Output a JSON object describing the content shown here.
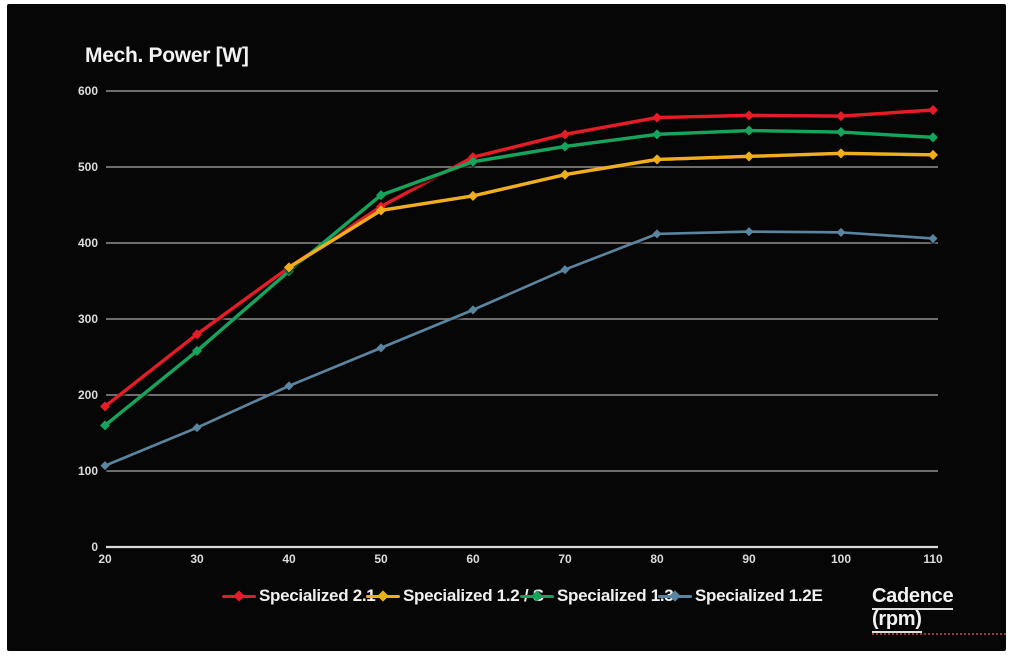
{
  "chart_data": {
    "type": "line",
    "title": "Mech. Power [W]",
    "xlabel": "Cadence (rpm)",
    "x": [
      20,
      30,
      40,
      50,
      60,
      70,
      80,
      90,
      100,
      110
    ],
    "y_ticks": [
      0,
      100,
      200,
      300,
      400,
      500,
      600
    ],
    "ylim": [
      0,
      600
    ],
    "xlim": [
      20,
      110
    ],
    "grid": true,
    "legend_position": "bottom",
    "background_color": "#060606",
    "gridline_color": "#8f8f8f",
    "axis_line_color": "#d9d9d9",
    "text_color": "#f2f2f2",
    "series": [
      {
        "name": "Specialized 2.1",
        "color": "#e31c25",
        "values": [
          185,
          280,
          368,
          448,
          513,
          543,
          565,
          568,
          567,
          575
        ]
      },
      {
        "name": "Specialized 1.3",
        "color": "#13a35b",
        "values": [
          160,
          258,
          363,
          463,
          507,
          527,
          543,
          548,
          546,
          539
        ]
      },
      {
        "name": "Specialized 1.2 / S",
        "color": "#f0ae1c",
        "values": [
          null,
          null,
          368,
          443,
          462,
          490,
          510,
          514,
          518,
          516
        ]
      },
      {
        "name": "Specialized 1.2E",
        "color": "#5a85a0",
        "values": [
          107,
          157,
          212,
          262,
          312,
          365,
          412,
          415,
          414,
          406
        ]
      }
    ],
    "legend_order": [
      "Specialized 2.1",
      "Specialized 1.2 / S",
      "Specialized 1.3",
      "Specialized 1.2E"
    ],
    "legend_x_positions": [
      222,
      366,
      520,
      658
    ]
  }
}
